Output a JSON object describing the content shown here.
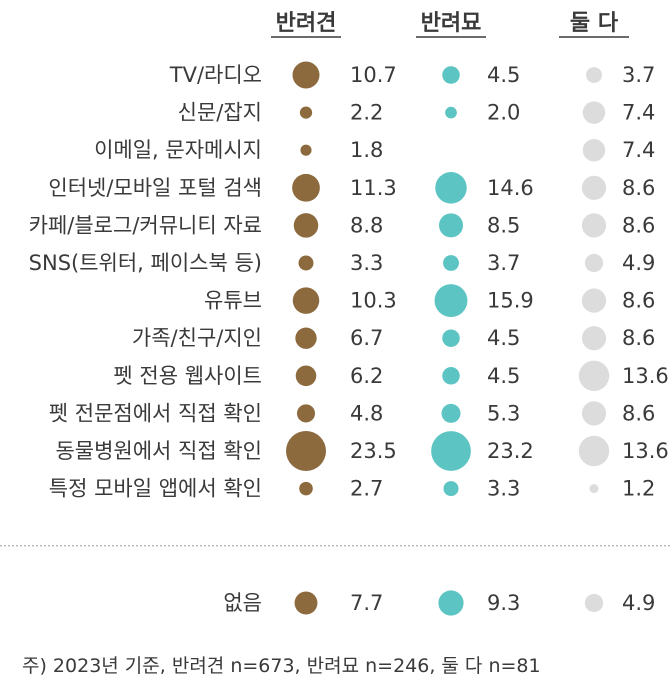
{
  "chart_data": {
    "type": "bubble-table",
    "series": [
      {
        "name": "반려견",
        "color": "#8c6a3e",
        "values": [
          10.7,
          2.2,
          1.8,
          11.3,
          8.8,
          3.3,
          10.3,
          6.7,
          6.2,
          4.8,
          23.5,
          2.7,
          7.7
        ]
      },
      {
        "name": "반려묘",
        "color": "#5cc4c2",
        "values": [
          4.5,
          2.0,
          null,
          14.6,
          8.5,
          3.7,
          15.9,
          4.5,
          4.5,
          5.3,
          23.2,
          3.3,
          9.3
        ]
      },
      {
        "name": "둘 다",
        "color": "#dcdcdc",
        "values": [
          3.7,
          7.4,
          7.4,
          8.6,
          8.6,
          4.9,
          8.6,
          8.6,
          13.6,
          8.6,
          13.6,
          1.2,
          4.9
        ]
      }
    ],
    "categories": [
      "TV/라디오",
      "신문/잡지",
      "이메일, 문자메시지",
      "인터넷/모바일 포털 검색",
      "카페/블로그/커뮤니티 자료",
      "SNS(트위터, 페이스북 등)",
      "유튜브",
      "가족/친구/지인",
      "펫 전용 웹사이트",
      "펫 전문점에서 직접 확인",
      "동물병원에서 직접 확인",
      "특정 모바일 앱에서 확인",
      "없음"
    ],
    "footnote": "주) 2023년 기준, 반려견 n=673, 반려묘 n=246, 둘 다 n=81"
  }
}
